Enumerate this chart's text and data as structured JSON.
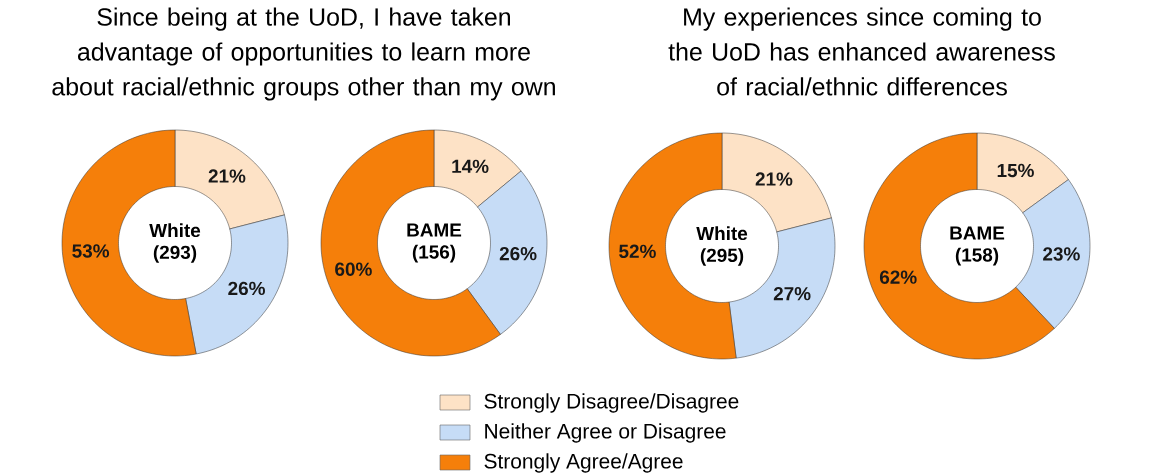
{
  "chart_data": [
    {
      "type": "donut",
      "title": "Since being at the UoD, I have taken advantage of opportunities to learn more about racial/ethnic groups other than my own",
      "categories": [
        "Strongly Disagree/Disagree",
        "Neither Agree or Disagree",
        "Strongly Agree/Agree"
      ],
      "values": [
        21,
        26,
        53
      ],
      "value_labels": [
        "21%",
        "26%",
        "53%"
      ],
      "colors": [
        "#fde2c6",
        "#c6dcf6",
        "#f57f0a"
      ],
      "annotations": [
        "White",
        "(293)"
      ],
      "legend": "bottom"
    },
    {
      "type": "donut",
      "categories": [
        null,
        null,
        null
      ],
      "values": [
        14,
        26,
        60
      ],
      "value_labels": [
        "14%",
        "26%",
        "60%"
      ],
      "colors": [
        "#fde2c6",
        "#c6dcf6",
        "#f57f0a"
      ],
      "annotations": [
        "BAME",
        "(156)"
      ]
    },
    {
      "type": "donut",
      "title": "My experiences since coming to the UoD has enhanced awareness of racial/ethnic differences",
      "categories": [
        null,
        null,
        null
      ],
      "values": [
        21,
        27,
        52
      ],
      "value_labels": [
        "21%",
        "27%",
        "52%"
      ],
      "colors": [
        "#fde2c6",
        "#c6dcf6",
        "#f57f0a"
      ],
      "annotations": [
        "White",
        "(295)"
      ]
    },
    {
      "type": "donut",
      "categories": [
        null,
        null,
        null
      ],
      "values": [
        15,
        23,
        62
      ],
      "value_labels": [
        "15%",
        "23%",
        "62%"
      ],
      "colors": [
        "#fde2c6",
        "#c6dcf6",
        "#f57f0a"
      ],
      "annotations": [
        "BAME",
        "(158)"
      ]
    }
  ]
}
